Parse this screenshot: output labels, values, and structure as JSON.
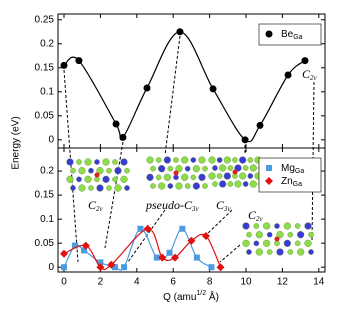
{
  "chart_data": [
    {
      "type": "line",
      "ylabel": "Energy (eV)",
      "xlim": [
        -0.33,
        14.34
      ],
      "xticks": [
        0,
        2,
        4,
        6,
        8,
        10,
        12,
        14
      ],
      "ylim": [
        -0.017,
        0.262
      ],
      "yticks": [
        0,
        0.05,
        0.1,
        0.15,
        0.2,
        0.25
      ],
      "legend": "upper right",
      "series": [
        {
          "name": "Be",
          "subscript": "Ga",
          "color": "#000000",
          "marker": "circle",
          "x": [
            0,
            0.82,
            2.86,
            3.24,
            4.56,
            6.37,
            8.19,
            9.95,
            10.77,
            12.31,
            13.24
          ],
          "values": [
            0.155,
            0.165,
            0.033,
            0.005,
            0.108,
            0.225,
            0.106,
            0.0,
            0.03,
            0.135,
            0.165
          ]
        }
      ],
      "annotations": [
        {
          "text": "C",
          "sub": "2v"
        }
      ]
    },
    {
      "type": "line",
      "xlabel": "Q (amu",
      "xlabel_sup": "1/2",
      "xlabel_end": " Å)",
      "xlim": [
        -0.33,
        14.34
      ],
      "xticks": [
        0,
        2,
        4,
        6,
        8,
        10,
        12,
        14
      ],
      "ylim": [
        -0.01,
        0.248
      ],
      "yticks": [
        0,
        0.05,
        0.1,
        0.15,
        0.2
      ],
      "legend": "upper right",
      "series": [
        {
          "name": "Mg",
          "subscript": "Ga",
          "color": "#4a9be0",
          "marker": "square",
          "x": [
            0,
            0.6,
            1.1,
            2.0,
            2.8,
            3.3,
            4.2,
            5.1,
            5.8,
            6.5,
            7.3,
            8.1
          ],
          "values": [
            0.0,
            0.045,
            0.035,
            0.01,
            0.0,
            0.0,
            0.08,
            0.02,
            0.03,
            0.08,
            0.02,
            0.0
          ]
        },
        {
          "name": "Zn",
          "subscript": "Ga",
          "color": "#e01010",
          "marker": "diamond",
          "x": [
            0,
            1.2,
            2.0,
            2.6,
            4.6,
            5.4,
            6.1,
            7.0,
            7.8,
            8.6
          ],
          "values": [
            0.028,
            0.045,
            0.0,
            0.005,
            0.08,
            0.02,
            0.02,
            0.055,
            0.065,
            0.0
          ]
        }
      ],
      "annotations": [
        {
          "text": "C",
          "sub": "2v"
        },
        {
          "text": "pseudo-C",
          "sub": "3v"
        },
        {
          "text": "C",
          "sub": "3v"
        },
        {
          "text": "C",
          "sub": "2v"
        }
      ]
    }
  ]
}
